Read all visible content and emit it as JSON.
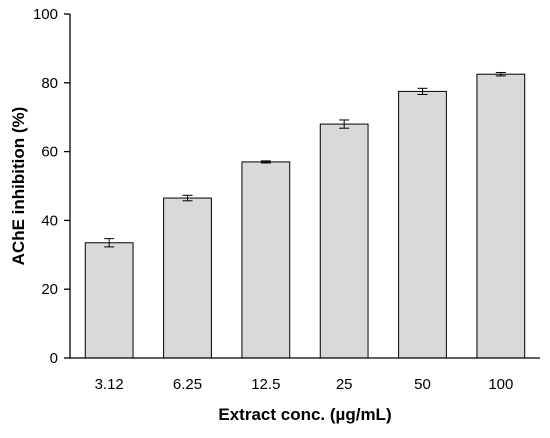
{
  "chart_data": {
    "type": "bar",
    "title": "",
    "xlabel": "Extract conc. (µg/mL)",
    "ylabel": "AChE inhibition (%)",
    "categories": [
      "3.12",
      "6.25",
      "12.5",
      "25",
      "50",
      "100"
    ],
    "values": [
      33.5,
      46.5,
      57.0,
      68.0,
      77.5,
      82.5
    ],
    "errors": [
      1.2,
      0.8,
      0.3,
      1.2,
      0.9,
      0.5
    ],
    "ylim": [
      0,
      100
    ],
    "yticks": [
      0,
      20,
      40,
      60,
      80,
      100
    ],
    "grid": false,
    "colors": {
      "bar_fill": "#d9d9d9",
      "bar_stroke": "#000000",
      "axis": "#000000"
    }
  }
}
